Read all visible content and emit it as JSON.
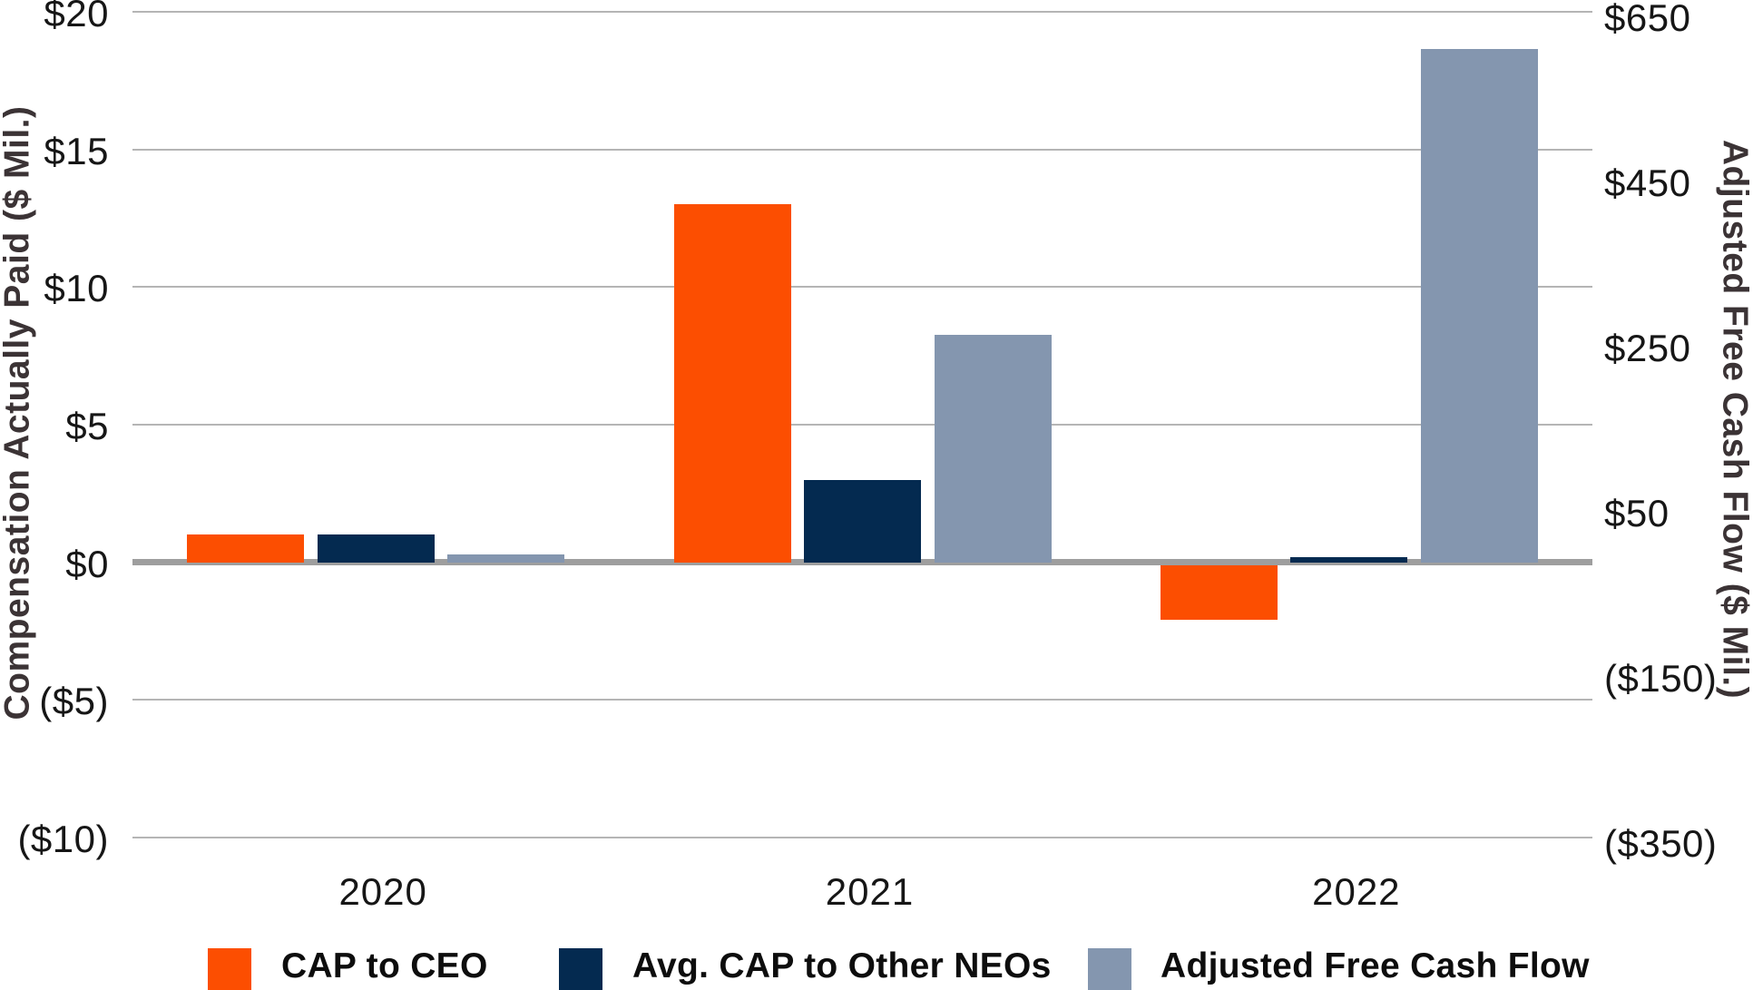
{
  "chart_data": {
    "type": "bar",
    "categories": [
      "2020",
      "2021",
      "2022"
    ],
    "series": [
      {
        "name": "CAP to CEO",
        "axis": "left",
        "color": "#fc4e01",
        "values": [
          1.0,
          13.0,
          -2.0
        ]
      },
      {
        "name": "Avg. CAP to Other NEOs",
        "axis": "left",
        "color": "#042a50",
        "values": [
          1.0,
          3.0,
          0.2
        ]
      },
      {
        "name": "Adjusted Free Cash Flow",
        "axis": "right",
        "color": "#8496af",
        "values": [
          10,
          275,
          622
        ]
      }
    ],
    "left_axis": {
      "label": "Compensation Actually Paid ($ Mil.)",
      "min": -10,
      "max": 20,
      "ticks": [
        {
          "value": 20,
          "label": "$20"
        },
        {
          "value": 15,
          "label": "$15"
        },
        {
          "value": 10,
          "label": "$10"
        },
        {
          "value": 5,
          "label": "$5"
        },
        {
          "value": 0,
          "label": "$0"
        },
        {
          "value": -5,
          "label": "($5)"
        },
        {
          "value": -10,
          "label": "($10)"
        }
      ]
    },
    "right_axis": {
      "label": "Adjusted Free Cash Flow ($ Mil.)",
      "min": -350,
      "max": 650,
      "ticks": [
        {
          "value": 650,
          "label": "$650"
        },
        {
          "value": 450,
          "label": "$450"
        },
        {
          "value": 250,
          "label": "$250"
        },
        {
          "value": 50,
          "label": "$50"
        },
        {
          "value": -150,
          "label": "($150)"
        },
        {
          "value": -350,
          "label": "($350)"
        }
      ]
    },
    "legend_position": "bottom",
    "grid": true,
    "gridline_color": "#b5b5b5",
    "zero_line_color": "#9e9e9e",
    "background_color": "#ffffff"
  }
}
